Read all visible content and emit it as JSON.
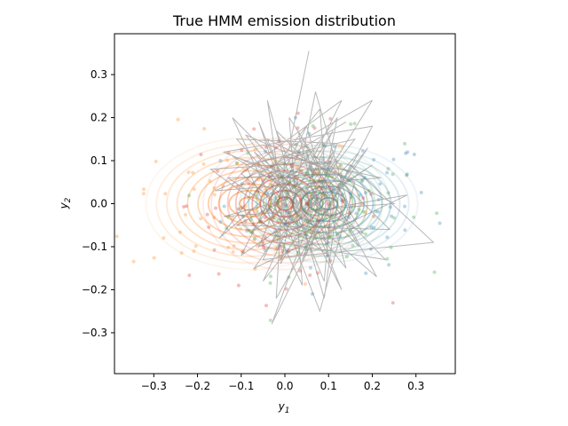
{
  "chart_data": {
    "type": "scatter",
    "title": "True HMM emission distribution",
    "xlabel_base": "y",
    "xlabel_sub": "1",
    "ylabel_base": "y",
    "ylabel_sub": "2",
    "xlim": [
      -0.39,
      0.39
    ],
    "ylim": [
      -0.395,
      0.395
    ],
    "xticks": [
      -0.3,
      -0.2,
      -0.1,
      0.0,
      0.1,
      0.2,
      0.3
    ],
    "xtick_labels": [
      "−0.3",
      "−0.2",
      "−0.1",
      "0.0",
      "0.1",
      "0.2",
      "0.3"
    ],
    "yticks": [
      -0.3,
      -0.2,
      -0.1,
      0.0,
      0.1,
      0.2,
      0.3
    ],
    "ytick_labels": [
      "−0.3",
      "−0.2",
      "−0.1",
      "0.0",
      "0.1",
      "0.2",
      "0.3"
    ],
    "grid": false,
    "states": [
      {
        "center": [
          0.1,
          0.0
        ],
        "sx": 0.12,
        "sy": 0.08,
        "color": "#1f77b4"
      },
      {
        "center": [
          -0.08,
          0.0
        ],
        "sx": 0.14,
        "sy": 0.09,
        "color": "#ff7f0e"
      },
      {
        "center": [
          0.07,
          0.0
        ],
        "sx": 0.1,
        "sy": 0.08,
        "color": "#2ca02c"
      },
      {
        "center": [
          0.0,
          0.0
        ],
        "sx": 0.11,
        "sy": 0.09,
        "color": "#d62728"
      }
    ],
    "point_samples": {
      "count_per_state": 90,
      "alpha": 0.3
    },
    "trajectory": {
      "color": "#808080",
      "alpha": 0.55,
      "points": [
        [
          0.055,
          0.355
        ],
        [
          0.01,
          0.13
        ],
        [
          0.2,
          0.24
        ],
        [
          0.03,
          -0.04
        ],
        [
          -0.1,
          0.07
        ],
        [
          0.13,
          0.24
        ],
        [
          -0.05,
          -0.13
        ],
        [
          0.34,
          -0.09
        ],
        [
          0.15,
          0.09
        ],
        [
          -0.03,
          -0.28
        ],
        [
          0.12,
          0.14
        ],
        [
          -0.11,
          0.15
        ],
        [
          0.1,
          -0.09
        ],
        [
          0.05,
          0.12
        ],
        [
          -0.16,
          0.03
        ],
        [
          0.22,
          0.06
        ],
        [
          0.0,
          0.11
        ],
        [
          -0.02,
          -0.22
        ],
        [
          0.17,
          0.12
        ],
        [
          0.02,
          -0.05
        ],
        [
          -0.06,
          0.19
        ],
        [
          0.09,
          -0.18
        ],
        [
          0.11,
          0.04
        ],
        [
          -0.14,
          -0.03
        ],
        [
          0.25,
          0.0
        ],
        [
          -0.04,
          0.15
        ],
        [
          0.06,
          -0.11
        ],
        [
          0.12,
          0.2
        ],
        [
          -0.08,
          -0.07
        ],
        [
          0.07,
          0.05
        ],
        [
          -0.12,
          0.11
        ],
        [
          0.18,
          -0.07
        ],
        [
          0.01,
          0.2
        ],
        [
          0.04,
          -0.19
        ],
        [
          -0.09,
          0.09
        ],
        [
          0.16,
          0.15
        ],
        [
          -0.02,
          -0.09
        ],
        [
          0.23,
          -0.13
        ],
        [
          0.03,
          0.08
        ],
        [
          -0.15,
          -0.08
        ],
        [
          0.08,
          0.22
        ],
        [
          0.1,
          -0.03
        ],
        [
          -0.07,
          0.12
        ],
        [
          0.14,
          -0.15
        ],
        [
          0.05,
          0.18
        ],
        [
          -0.1,
          -0.12
        ],
        [
          0.2,
          0.09
        ],
        [
          0.0,
          -0.04
        ],
        [
          -0.04,
          0.24
        ],
        [
          0.09,
          -0.22
        ],
        [
          0.13,
          0.07
        ],
        [
          -0.13,
          0.06
        ],
        [
          0.06,
          -0.07
        ],
        [
          0.19,
          0.13
        ],
        [
          -0.05,
          -0.18
        ],
        [
          0.11,
          0.17
        ],
        [
          0.02,
          0.02
        ],
        [
          -0.11,
          -0.05
        ],
        [
          0.24,
          -0.06
        ],
        [
          0.04,
          0.14
        ],
        [
          -0.06,
          -0.1
        ],
        [
          0.15,
          -0.02
        ],
        [
          0.07,
          0.26
        ],
        [
          -0.01,
          -0.14
        ],
        [
          0.12,
          0.1
        ],
        [
          -0.17,
          0.08
        ],
        [
          0.1,
          -0.12
        ],
        [
          0.03,
          0.17
        ],
        [
          0.21,
          -0.17
        ],
        [
          -0.03,
          0.04
        ],
        [
          0.08,
          -0.25
        ],
        [
          0.16,
          0.05
        ],
        [
          -0.09,
          0.16
        ],
        [
          0.05,
          -0.02
        ],
        [
          0.28,
          0.02
        ],
        [
          -0.07,
          -0.15
        ],
        [
          0.11,
          0.12
        ],
        [
          0.01,
          -0.08
        ],
        [
          -0.12,
          0.2
        ],
        [
          0.17,
          -0.1
        ],
        [
          0.06,
          0.09
        ],
        [
          -0.02,
          0.17
        ],
        [
          0.13,
          -0.2
        ],
        [
          0.0,
          0.06
        ],
        [
          -0.14,
          0.12
        ],
        [
          0.2,
          0.18
        ],
        [
          0.04,
          -0.13
        ],
        [
          0.09,
          0.01
        ],
        [
          -0.06,
          0.07
        ],
        [
          0.14,
          0.19
        ]
      ]
    }
  }
}
